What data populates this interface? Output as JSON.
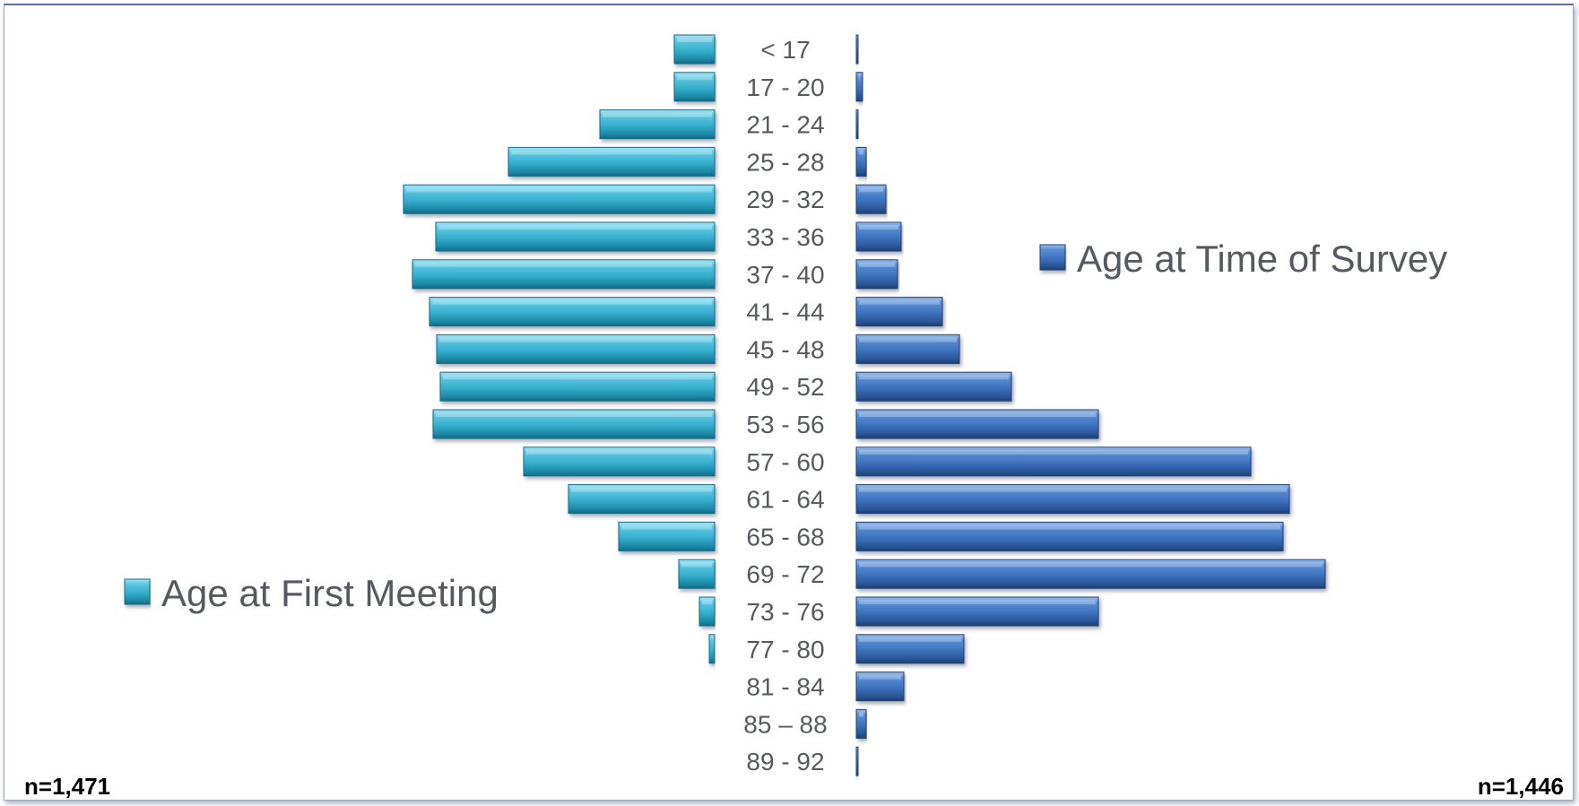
{
  "chart_data": {
    "type": "bar",
    "orientation": "horizontal-butterfly",
    "categories": [
      "< 17",
      "17 - 20",
      "21 - 24",
      "25 - 28",
      "29 - 32",
      "33 - 36",
      "37 - 40",
      "41 - 44",
      "45 - 48",
      "49 - 52",
      "53 - 56",
      "57 - 60",
      "61 - 64",
      "65 - 68",
      "69 - 72",
      "73 - 76",
      "77 - 80",
      "81 - 84",
      "85 – 88",
      "89 - 92"
    ],
    "series": [
      {
        "name": "Age at First Meeting",
        "side": "left",
        "color": "#3bb3d1",
        "values": [
          45,
          45,
          128,
          230,
          347,
          311,
          337,
          318,
          310,
          306,
          314,
          213,
          163,
          107,
          40,
          17,
          6,
          0,
          0,
          0
        ]
      },
      {
        "name": "Age at Time of Survey",
        "side": "right",
        "color": "#3f74c0",
        "values": [
          2,
          7,
          2,
          11,
          33,
          50,
          46,
          96,
          115,
          173,
          270,
          440,
          483,
          476,
          523,
          270,
          120,
          53,
          11,
          2
        ]
      }
    ],
    "legend": [
      "Age at First Meeting",
      "Age at Time of Survey"
    ],
    "legend_placement": "left series: lower-left; right series: upper-right",
    "grid": false
  },
  "annotations": {
    "n_left": "n=1,471",
    "n_right": "n=1,446"
  }
}
